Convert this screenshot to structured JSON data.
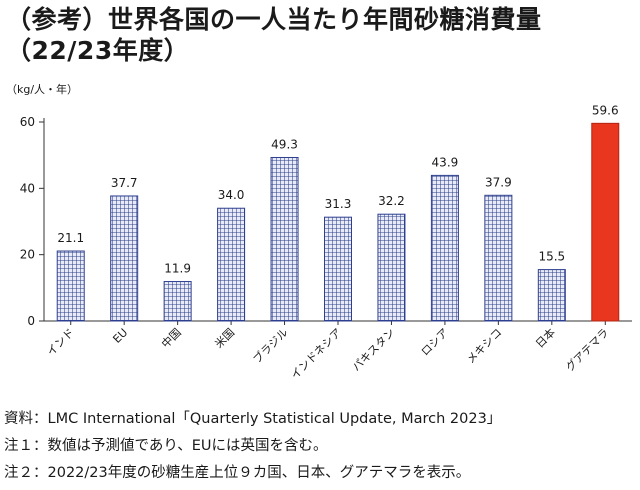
{
  "chart_data": {
    "type": "bar",
    "title": "（参考）世界各国の一人当たり年間砂糖消費量",
    "subtitle": "（22/23年度）",
    "ylabel": "（kg/人・年）",
    "xlabel": "",
    "ylim": [
      0,
      60
    ],
    "yticks": [
      0,
      20,
      40,
      60
    ],
    "grid": false,
    "categories": [
      "インド",
      "EU",
      "中国",
      "米国",
      "ブラジル",
      "インドネシア",
      "パキスタン",
      "ロシア",
      "メキシコ",
      "日本",
      "グアテマラ"
    ],
    "values": [
      21.1,
      37.7,
      11.9,
      34.0,
      49.3,
      31.3,
      32.2,
      43.9,
      37.9,
      15.5,
      59.6
    ],
    "value_labels": [
      "21.1",
      "37.7",
      "11.9",
      "34.0",
      "49.3",
      "31.3",
      "32.2",
      "43.9",
      "37.9",
      "15.5",
      "59.6"
    ],
    "colors": {
      "default": "#2e3f8f",
      "fill": "#e8ebf6",
      "highlight": "#e8361f",
      "highlight_index": 10
    }
  },
  "notes": [
    "資料：LMC International「Quarterly Statistical Update, March 2023」",
    "注１：数値は予測値であり、EUには英国を含む。",
    "注２：2022/23年度の砂糖生産上位９カ国、日本、グアテマラを表示。"
  ]
}
